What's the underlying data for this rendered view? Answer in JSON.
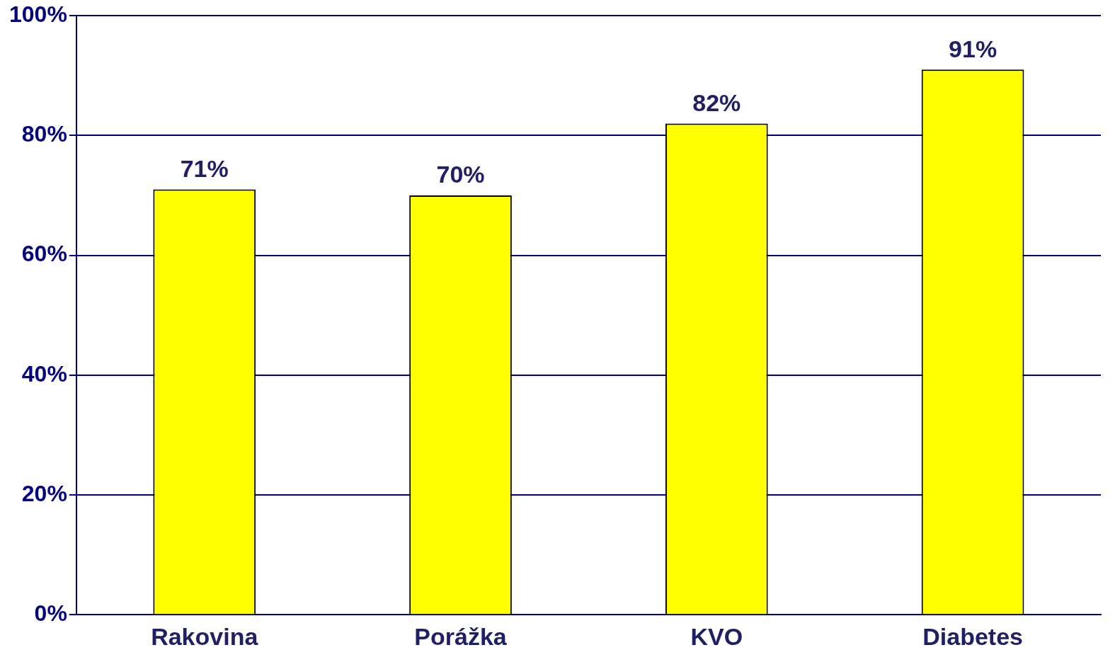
{
  "chart_data": {
    "type": "bar",
    "categories": [
      "Rakovina",
      "Porážka",
      "KVO",
      "Diabetes"
    ],
    "values": [
      71,
      70,
      82,
      91
    ],
    "value_labels": [
      "71%",
      "70%",
      "82%",
      "91%"
    ],
    "color": "#ffff00",
    "ylim": [
      0,
      100
    ],
    "yticks": [
      {
        "value": 0,
        "label": "0%"
      },
      {
        "value": 20,
        "label": "20%"
      },
      {
        "value": 40,
        "label": "40%"
      },
      {
        "value": 60,
        "label": "60%"
      },
      {
        "value": 80,
        "label": "80%"
      },
      {
        "value": 100,
        "label": "100%"
      }
    ],
    "grid": "y"
  }
}
